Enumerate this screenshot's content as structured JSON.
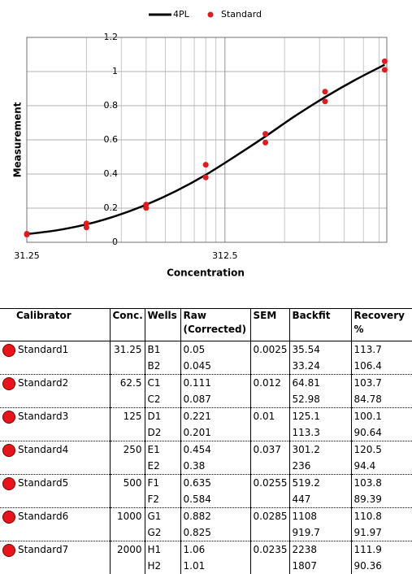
{
  "chart_data": {
    "type": "line-scatter",
    "x_label": "Concentration",
    "y_label": "Measurement",
    "xlim": [
      31.25,
      2050
    ],
    "ylim": [
      0,
      1.2
    ],
    "log_x": true,
    "xticks": [
      31.25,
      312.5
    ],
    "xminor": [
      62.5,
      93.75,
      125,
      156.25,
      187.5,
      218.75,
      250,
      281.25,
      625,
      937.5,
      1250,
      1562.5,
      1875
    ],
    "yticks": [
      0,
      0.2,
      0.4,
      0.6,
      0.8,
      1,
      1.2
    ],
    "grid": true,
    "legend": "top",
    "series": [
      {
        "name": "4PL",
        "color": "#000000",
        "kind": "line",
        "x": [
          31.25,
          44.2,
          62.5,
          88.4,
          125,
          176.8,
          250,
          353.6,
          500,
          707,
          1000,
          1414,
          2000
        ],
        "values": [
          0.048,
          0.07,
          0.105,
          0.155,
          0.22,
          0.3,
          0.395,
          0.505,
          0.62,
          0.74,
          0.85,
          0.95,
          1.04
        ]
      },
      {
        "name": "Standard",
        "color": "#e31a1c",
        "kind": "scatter",
        "x": [
          31.25,
          31.25,
          62.5,
          62.5,
          125,
          125,
          250,
          250,
          500,
          500,
          1000,
          1000,
          2000,
          2000
        ],
        "values": [
          0.05,
          0.045,
          0.111,
          0.087,
          0.221,
          0.201,
          0.454,
          0.38,
          0.635,
          0.584,
          0.882,
          0.825,
          1.06,
          1.01
        ]
      }
    ]
  },
  "table": {
    "header": [
      "Calibrator",
      "Conc.",
      "Wells",
      "Raw (Corrected)",
      "SEM",
      "Backfit",
      "Recovery %"
    ],
    "groups": [
      {
        "calibrator": "Standard1",
        "conc": 31.25,
        "sem": 0.0025,
        "wells": [
          {
            "well": "B1",
            "raw": 0.05,
            "backfit": 35.54,
            "recovery": 113.7
          },
          {
            "well": "B2",
            "raw": 0.045,
            "backfit": 33.24,
            "recovery": 106.4
          }
        ]
      },
      {
        "calibrator": "Standard2",
        "conc": 62.5,
        "sem": 0.012,
        "wells": [
          {
            "well": "C1",
            "raw": 0.111,
            "backfit": 64.81,
            "recovery": 103.7
          },
          {
            "well": "C2",
            "raw": 0.087,
            "backfit": 52.98,
            "recovery": 84.78
          }
        ]
      },
      {
        "calibrator": "Standard3",
        "conc": 125,
        "sem": 0.01,
        "wells": [
          {
            "well": "D1",
            "raw": 0.221,
            "backfit": 125.1,
            "recovery": 100.1
          },
          {
            "well": "D2",
            "raw": 0.201,
            "backfit": 113.3,
            "recovery": 90.64
          }
        ]
      },
      {
        "calibrator": "Standard4",
        "conc": 250,
        "sem": 0.037,
        "wells": [
          {
            "well": "E1",
            "raw": 0.454,
            "backfit": 301.2,
            "recovery": 120.5
          },
          {
            "well": "E2",
            "raw": 0.38,
            "backfit": 236,
            "recovery": 94.4
          }
        ]
      },
      {
        "calibrator": "Standard5",
        "conc": 500,
        "sem": 0.0255,
        "wells": [
          {
            "well": "F1",
            "raw": 0.635,
            "backfit": 519.2,
            "recovery": 103.8
          },
          {
            "well": "F2",
            "raw": 0.584,
            "backfit": 447,
            "recovery": 89.39
          }
        ]
      },
      {
        "calibrator": "Standard6",
        "conc": 1000,
        "sem": 0.0285,
        "wells": [
          {
            "well": "G1",
            "raw": 0.882,
            "backfit": 1108,
            "recovery": 110.8
          },
          {
            "well": "G2",
            "raw": 0.825,
            "backfit": 919.7,
            "recovery": 91.97
          }
        ]
      },
      {
        "calibrator": "Standard7",
        "conc": 2000,
        "sem": 0.0235,
        "wells": [
          {
            "well": "H1",
            "raw": 1.06,
            "backfit": 2238,
            "recovery": 111.9
          },
          {
            "well": "H2",
            "raw": 1.01,
            "backfit": 1807,
            "recovery": 90.36
          }
        ]
      }
    ]
  }
}
